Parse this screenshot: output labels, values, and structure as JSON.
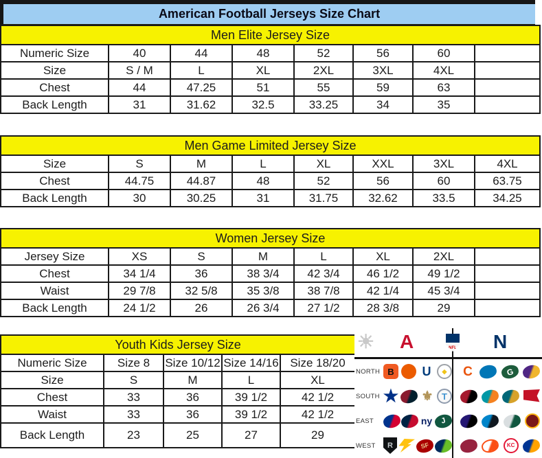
{
  "title": "American Football Jerseys Size Chart",
  "tables": [
    {
      "id": "men-elite",
      "section_title": "Men Elite Jersey Size",
      "rows": [
        {
          "label": "Numeric Size",
          "values": [
            "40",
            "44",
            "48",
            "52",
            "56",
            "60",
            ""
          ]
        },
        {
          "label": "Size",
          "values": [
            "S / M",
            "L",
            "XL",
            "2XL",
            "3XL",
            "4XL",
            ""
          ]
        },
        {
          "label": "Chest",
          "values": [
            "44",
            "47.25",
            "51",
            "55",
            "59",
            "63",
            ""
          ]
        },
        {
          "label": "Back Length",
          "values": [
            "31",
            "31.62",
            "32.5",
            "33.25",
            "34",
            "35",
            ""
          ]
        }
      ]
    },
    {
      "id": "men-game-limited",
      "section_title": "Men Game Limited Jersey Size",
      "rows": [
        {
          "label": "Size",
          "values": [
            "S",
            "M",
            "L",
            "XL",
            "XXL",
            "3XL",
            "4XL"
          ]
        },
        {
          "label": "Chest",
          "values": [
            "44.75",
            "44.87",
            "48",
            "52",
            "56",
            "60",
            "63.75"
          ]
        },
        {
          "label": "Back Length",
          "values": [
            "30",
            "30.25",
            "31",
            "31.75",
            "32.62",
            "33.5",
            "34.25"
          ]
        }
      ]
    },
    {
      "id": "women",
      "section_title": "Women Jersey Size",
      "rows": [
        {
          "label": "Jersey Size",
          "values": [
            "XS",
            "S",
            "M",
            "L",
            "XL",
            "2XL",
            ""
          ]
        },
        {
          "label": "Chest",
          "values": [
            "34 1/4",
            "36",
            "38 3/4",
            "42 3/4",
            "46 1/2",
            "49 1/2",
            ""
          ]
        },
        {
          "label": "Waist",
          "values": [
            "29 7/8",
            "32 5/8",
            "35 3/8",
            "38 7/8",
            "42 1/4",
            "45 3/4",
            ""
          ]
        },
        {
          "label": "Back Length",
          "values": [
            "24 1/2",
            "26",
            "26 3/4",
            "27 1/2",
            "28 3/8",
            "29",
            ""
          ]
        }
      ]
    },
    {
      "id": "youth-kids",
      "section_title": "Youth Kids Jersey Size",
      "rows": [
        {
          "label": "Numeric Size",
          "values": [
            "Size 8",
            "Size 10/12",
            "Size 14/16",
            "Size 18/20"
          ]
        },
        {
          "label": "Size",
          "values": [
            "S",
            "M",
            "L",
            "XL"
          ]
        },
        {
          "label": "Chest",
          "values": [
            "33",
            "36",
            "39 1/2",
            "42 1/2"
          ]
        },
        {
          "label": "Waist",
          "values": [
            "33",
            "36",
            "39 1/2",
            "42 1/2"
          ]
        },
        {
          "label": "Back Length",
          "values": [
            "23",
            "25",
            "27",
            "29"
          ]
        }
      ]
    }
  ],
  "logo_panel": {
    "starburst_glyph": "☀",
    "afc_letter": "A",
    "nfl_text": "NFL",
    "nfc_letter": "N",
    "divisions": [
      "NORTH",
      "SOUTH",
      "EAST",
      "WEST"
    ],
    "afc": [
      [
        {
          "name": "bengals",
          "glyph": "B",
          "shape": "round",
          "bg": "#f05a22",
          "fg": "#111111"
        },
        {
          "name": "browns",
          "glyph": "",
          "shape": "circle",
          "bg": "#eb5b00"
        },
        {
          "name": "colts",
          "glyph": "U",
          "shape": "text",
          "fg": "#003b7b",
          "fs": 18
        },
        {
          "name": "steelers",
          "glyph": "◆",
          "shape": "circle",
          "bg": "#ffffff",
          "border": "#9ea2a8",
          "fg": "#f0c419",
          "fs": 9
        }
      ],
      [
        {
          "name": "cowboys",
          "glyph": "★",
          "shape": "star",
          "fg": "#003087"
        },
        {
          "name": "texans",
          "glyph": "",
          "shape": "oval",
          "bg": "#8a1b2f",
          "bg2": "#03202f"
        },
        {
          "name": "saints",
          "glyph": "⚜",
          "shape": "text",
          "fg": "#b19356",
          "fs": 19
        },
        {
          "name": "titans",
          "glyph": "T",
          "shape": "circle",
          "bg": "#f8f8f8",
          "border": "#8f9bad",
          "fg": "#4495d1"
        }
      ],
      [
        {
          "name": "bills",
          "glyph": "",
          "shape": "oval",
          "bg": "#00338d",
          "bg2": "#d50032"
        },
        {
          "name": "patriots",
          "glyph": "",
          "shape": "oval",
          "bg": "#002244",
          "bg2": "#c60c30"
        },
        {
          "name": "giants",
          "glyph": "ny",
          "shape": "text",
          "fg": "#0b2265",
          "fs": 14
        },
        {
          "name": "jets",
          "glyph": "J",
          "shape": "oval",
          "bg": "#115740",
          "fg": "#ffffff",
          "fs": 11
        }
      ],
      [
        {
          "name": "raiders",
          "glyph": "R",
          "shape": "shield",
          "bg": "#101214",
          "fg": "#c4c9cc",
          "fs": 11
        },
        {
          "name": "chargers",
          "glyph": "",
          "shape": "bolt",
          "bg": "#ffc20e"
        },
        {
          "name": "49ers",
          "glyph": "SF",
          "shape": "oval",
          "bg": "#aa0000",
          "fg": "#e6c288",
          "fs": 9
        },
        {
          "name": "seahawks",
          "glyph": "",
          "shape": "oval",
          "bg": "#002a5c",
          "bg2": "#69be28"
        }
      ]
    ],
    "nfc": [
      [
        {
          "name": "bears",
          "glyph": "C",
          "shape": "text",
          "fg": "#e9540d",
          "fs": 19
        },
        {
          "name": "lions",
          "glyph": "",
          "shape": "oval",
          "bg": "#0076b6"
        },
        {
          "name": "packers",
          "glyph": "G",
          "shape": "oval",
          "bg": "#1d5c3c",
          "fg": "#ffffff",
          "fs": 12
        },
        {
          "name": "vikings",
          "glyph": "",
          "shape": "oval",
          "bg": "#4f2683",
          "bg2": "#f0b52c"
        }
      ],
      [
        {
          "name": "falcons",
          "glyph": "",
          "shape": "oval",
          "bg": "#a6192e",
          "bg2": "#000000"
        },
        {
          "name": "dolphins",
          "glyph": "",
          "shape": "oval",
          "bg": "#0098a5",
          "bg2": "#f58220"
        },
        {
          "name": "jaguars",
          "glyph": "",
          "shape": "oval",
          "bg": "#006778",
          "bg2": "#d7a22a"
        },
        {
          "name": "buccaneers",
          "glyph": "",
          "shape": "flag",
          "bg": "#c41227"
        }
      ],
      [
        {
          "name": "ravens",
          "glyph": "",
          "shape": "oval",
          "bg": "#241773",
          "bg2": "#000000"
        },
        {
          "name": "panthers",
          "glyph": "",
          "shape": "oval",
          "bg": "#0085ca",
          "bg2": "#101820"
        },
        {
          "name": "eagles",
          "glyph": "",
          "shape": "oval",
          "bg": "#d9dee0",
          "bg2": "#115740"
        },
        {
          "name": "redskins",
          "glyph": "",
          "shape": "circle",
          "bg": "#7a1818",
          "border": "#ffb612"
        }
      ],
      [
        {
          "name": "cardinals",
          "glyph": "",
          "shape": "oval",
          "bg": "#97233f"
        },
        {
          "name": "broncos",
          "glyph": "",
          "shape": "oval",
          "bg": "#ffffff",
          "bg2": "#fb4f14",
          "border": "#fb4f14"
        },
        {
          "name": "chiefs",
          "glyph": "KC",
          "shape": "circle",
          "bg": "#ffffff",
          "border": "#e31837",
          "fg": "#e31837",
          "fs": 8
        },
        {
          "name": "rams",
          "glyph": "",
          "shape": "oval",
          "bg": "#003594",
          "bg2": "#ffa300"
        }
      ]
    ]
  },
  "colors": {
    "title_bg": "#9ecdf2",
    "section_bg": "#f7f200",
    "border": "#1a1a1a",
    "afc_red": "#c8102e",
    "nfc_blue": "#013369"
  }
}
